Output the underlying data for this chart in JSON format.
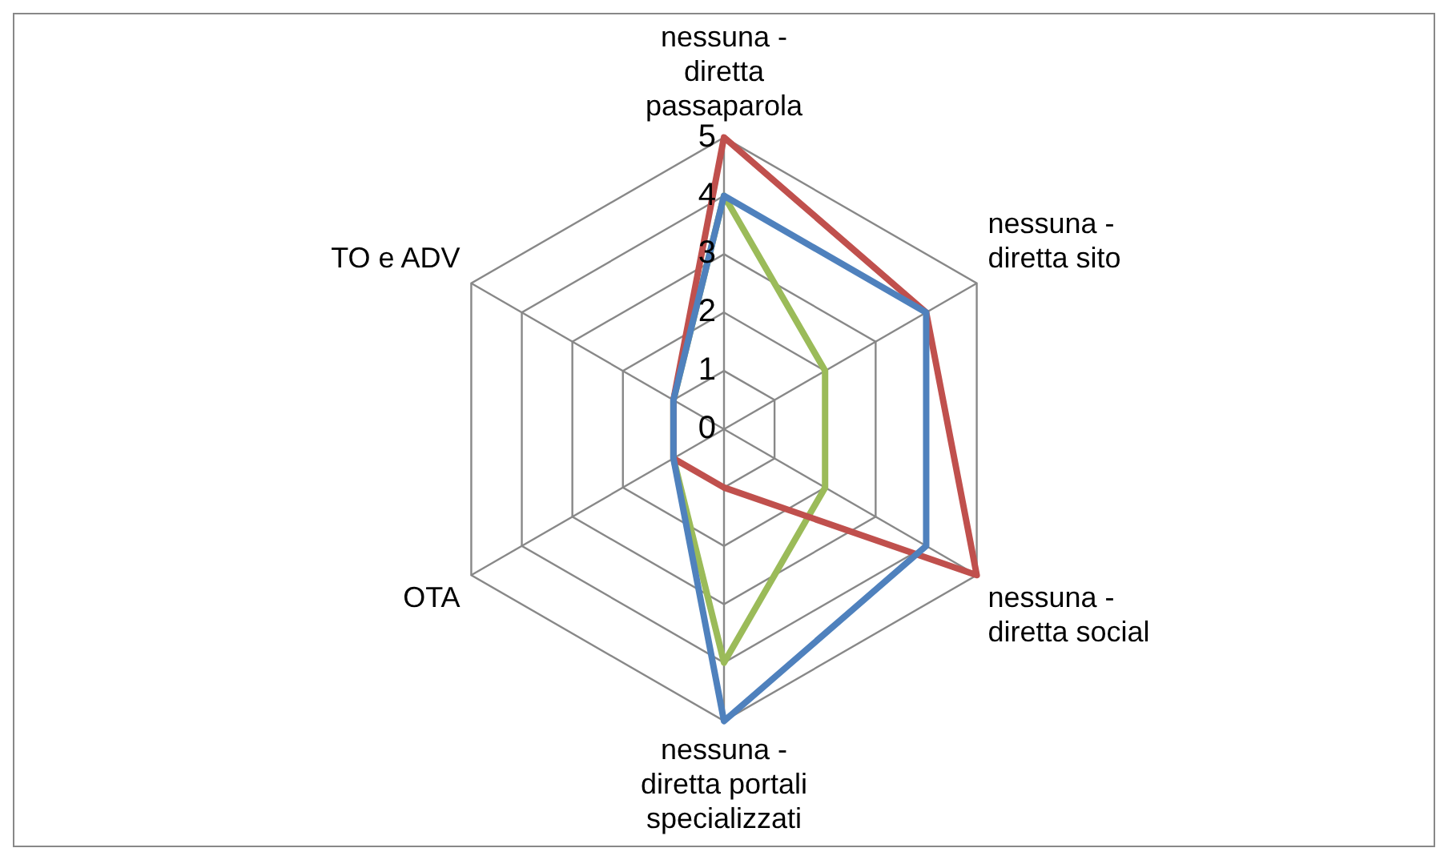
{
  "chart_data": {
    "type": "radar",
    "categories": [
      "nessuna - diretta passaparola",
      "nessuna - diretta sito",
      "nessuna - diretta social",
      "nessuna - diretta portali specializzati",
      "OTA",
      "TO e ADV"
    ],
    "series": [
      {
        "color": "#4f81bd",
        "values": [
          4,
          4,
          4,
          5,
          1,
          1
        ]
      },
      {
        "color": "#c0504d",
        "values": [
          5,
          4,
          5,
          1,
          1,
          1
        ]
      },
      {
        "color": "#9bbb59",
        "values": [
          4,
          2,
          2,
          4,
          1,
          1
        ]
      }
    ],
    "ylim": [
      0,
      5
    ],
    "yticks": [
      0,
      1,
      2,
      3,
      4,
      5
    ],
    "grid": true,
    "legend": false,
    "marker": "none"
  }
}
